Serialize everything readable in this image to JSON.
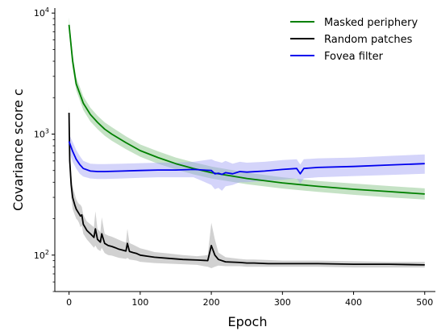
{
  "chart_data": {
    "type": "line",
    "xlabel": "Epoch",
    "ylabel": "Covariance score c",
    "xlim": [
      -20,
      515
    ],
    "ylim": [
      50,
      11000
    ],
    "yscale": "log",
    "x_ticks": [
      0,
      100,
      200,
      300,
      400,
      500
    ],
    "x_tick_labels": [
      "0",
      "100",
      "200",
      "300",
      "400",
      "500"
    ],
    "y_ticks": [
      100,
      1000,
      10000
    ],
    "y_tick_labels": [
      "10",
      "10",
      "10"
    ],
    "y_tick_exponents": [
      "2",
      "3",
      "4"
    ],
    "grid": false,
    "legend_position": "top-right",
    "series": [
      {
        "name": "Masked periphery",
        "color": "#008000",
        "band_color": "#7fbf7f",
        "x": [
          0,
          5,
          10,
          20,
          30,
          40,
          50,
          60,
          80,
          100,
          125,
          150,
          175,
          200,
          250,
          300,
          350,
          400,
          450,
          500
        ],
        "y": [
          8000,
          4000,
          2600,
          1800,
          1450,
          1250,
          1100,
          1000,
          850,
          730,
          640,
          570,
          520,
          480,
          430,
          395,
          370,
          350,
          335,
          320
        ],
        "lower": [
          7000,
          3500,
          2300,
          1580,
          1270,
          1100,
          970,
          880,
          750,
          650,
          570,
          510,
          465,
          430,
          385,
          355,
          333,
          315,
          300,
          288
        ],
        "upper": [
          9200,
          4600,
          2950,
          2050,
          1650,
          1420,
          1250,
          1140,
          960,
          820,
          720,
          640,
          585,
          540,
          480,
          440,
          410,
          390,
          372,
          356
        ]
      },
      {
        "name": "Random patches",
        "color": "#000000",
        "band_color": "#9a9a9a",
        "x": [
          0,
          1,
          3,
          5,
          8,
          10,
          12,
          14,
          16,
          18,
          20,
          25,
          30,
          35,
          37,
          40,
          44,
          46,
          50,
          55,
          60,
          65,
          70,
          75,
          80,
          82,
          85,
          90,
          95,
          100,
          110,
          120,
          140,
          160,
          180,
          195,
          200,
          205,
          210,
          220,
          240,
          250,
          260,
          280,
          300,
          325,
          350,
          400,
          450,
          500
        ],
        "y": [
          1500,
          600,
          380,
          300,
          260,
          240,
          230,
          220,
          210,
          215,
          180,
          160,
          150,
          140,
          165,
          135,
          128,
          150,
          125,
          120,
          118,
          115,
          112,
          110,
          108,
          125,
          107,
          105,
          103,
          100,
          98,
          96,
          94,
          92,
          91,
          90,
          120,
          100,
          92,
          88,
          87,
          86,
          86,
          85,
          85,
          85,
          85,
          84,
          84,
          83
        ],
        "lower": [
          1200,
          480,
          300,
          240,
          215,
          200,
          195,
          185,
          170,
          175,
          150,
          135,
          125,
          115,
          120,
          112,
          108,
          115,
          104,
          100,
          99,
          97,
          95,
          94,
          93,
          95,
          92,
          91,
          90,
          88,
          87,
          86,
          85,
          84,
          83,
          80,
          78,
          80,
          82,
          81,
          81,
          80,
          80,
          80,
          80,
          80,
          80,
          79,
          79,
          79
        ],
        "upper": [
          1700,
          720,
          470,
          370,
          320,
          290,
          275,
          265,
          260,
          250,
          215,
          190,
          180,
          170,
          230,
          165,
          155,
          205,
          150,
          145,
          142,
          138,
          134,
          130,
          127,
          165,
          126,
          122,
          118,
          114,
          110,
          106,
          103,
          100,
          98,
          100,
          185,
          135,
          105,
          96,
          93,
          92,
          92,
          91,
          90,
          90,
          90,
          89,
          88,
          88
        ]
      },
      {
        "name": "Fovea filter",
        "color": "#0000ee",
        "band_color": "#9f9ff5",
        "x": [
          0,
          5,
          10,
          15,
          20,
          30,
          40,
          50,
          75,
          100,
          125,
          150,
          175,
          200,
          205,
          210,
          215,
          220,
          230,
          240,
          250,
          275,
          300,
          320,
          325,
          330,
          350,
          400,
          450,
          500
        ],
        "y": [
          870,
          720,
          620,
          560,
          520,
          495,
          490,
          490,
          495,
          500,
          505,
          505,
          510,
          500,
          470,
          475,
          465,
          480,
          470,
          490,
          485,
          495,
          510,
          520,
          470,
          520,
          530,
          540,
          555,
          570
        ],
        "lower": [
          720,
          590,
          520,
          470,
          445,
          430,
          425,
          425,
          430,
          435,
          440,
          440,
          440,
          380,
          350,
          360,
          340,
          370,
          380,
          400,
          400,
          410,
          420,
          430,
          390,
          430,
          440,
          450,
          460,
          470
        ],
        "upper": [
          1000,
          860,
          740,
          660,
          600,
          570,
          565,
          565,
          570,
          575,
          580,
          580,
          590,
          620,
          600,
          590,
          580,
          600,
          570,
          590,
          580,
          590,
          610,
          620,
          560,
          620,
          630,
          640,
          660,
          680
        ]
      }
    ]
  }
}
